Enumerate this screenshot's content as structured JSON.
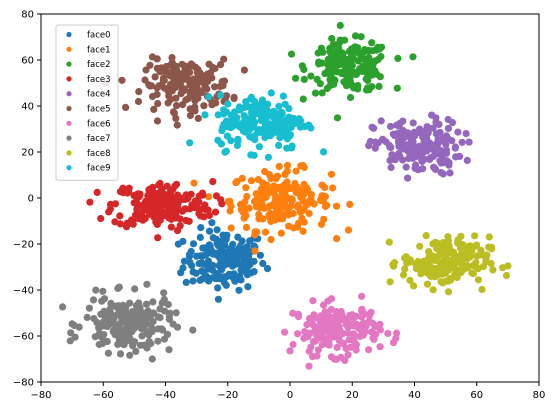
{
  "chart_data": {
    "type": "scatter",
    "title": "",
    "xlabel": "",
    "ylabel": "",
    "xlim": [
      -80,
      80
    ],
    "ylim": [
      -80,
      80
    ],
    "xticks": [
      -80,
      -60,
      -40,
      -20,
      0,
      20,
      40,
      60,
      80
    ],
    "yticks": [
      -80,
      -60,
      -40,
      -20,
      0,
      20,
      40,
      60,
      80
    ],
    "grid": false,
    "legend_position": "top-left",
    "series": [
      {
        "name": "face0",
        "color": "#1f77b4",
        "center": [
          -21,
          -27
        ],
        "spread": [
          6.5,
          6.5
        ],
        "count": 170
      },
      {
        "name": "face1",
        "color": "#ff7f0e",
        "center": [
          -3,
          -1
        ],
        "spread": [
          8,
          6.5
        ],
        "count": 190
      },
      {
        "name": "face2",
        "color": "#2ca02c",
        "center": [
          19,
          57
        ],
        "spread": [
          6.5,
          5.5
        ],
        "count": 190
      },
      {
        "name": "face3",
        "color": "#d62728",
        "center": [
          -41,
          -3
        ],
        "spread": [
          8,
          5
        ],
        "count": 190
      },
      {
        "name": "face4",
        "color": "#9467bd",
        "center": [
          41,
          22
        ],
        "spread": [
          7,
          6
        ],
        "count": 170
      },
      {
        "name": "face5",
        "color": "#8c564b",
        "center": [
          -33,
          49
        ],
        "spread": [
          7,
          5.5
        ],
        "count": 170
      },
      {
        "name": "face6",
        "color": "#e377c2",
        "center": [
          15,
          -57
        ],
        "spread": [
          7,
          5.5
        ],
        "count": 170
      },
      {
        "name": "face7",
        "color": "#7f7f7f",
        "center": [
          -52,
          -55
        ],
        "spread": [
          7,
          6
        ],
        "count": 190
      },
      {
        "name": "face8",
        "color": "#bcbd22",
        "center": [
          50,
          -28
        ],
        "spread": [
          7,
          5.5
        ],
        "count": 180
      },
      {
        "name": "face9",
        "color": "#17becf",
        "center": [
          -9,
          33
        ],
        "spread": [
          7,
          6
        ],
        "count": 180
      }
    ]
  }
}
